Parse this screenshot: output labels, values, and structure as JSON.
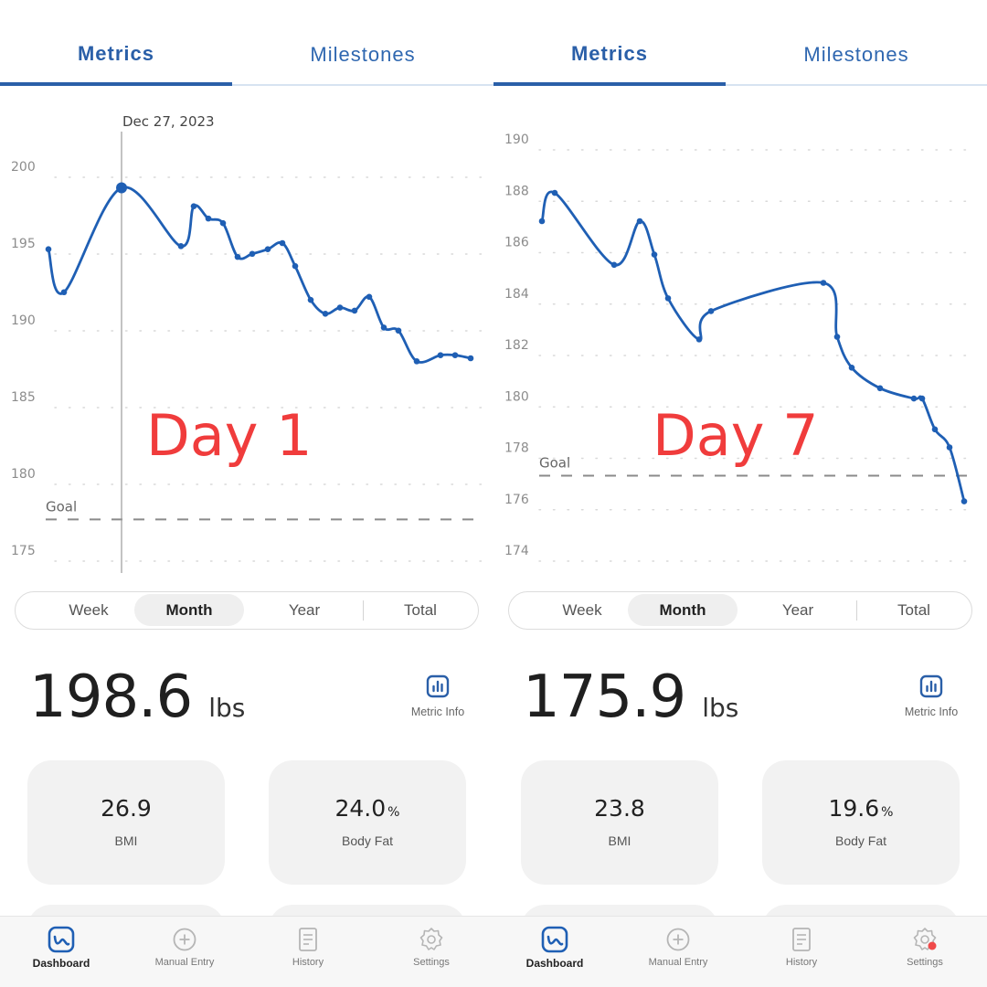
{
  "panels": [
    {
      "tabs": {
        "metrics": "Metrics",
        "milestones": "Milestones"
      },
      "chart_data": {
        "type": "line",
        "y_ticks": [
          "200",
          "195",
          "190",
          "185",
          "180",
          "175"
        ],
        "ylim": [
          175,
          200
        ],
        "goal_label": "Goal",
        "goal_value": 177,
        "selected_label": "Dec 27, 2023",
        "selected_value": 198.6,
        "values": [
          194.6,
          191.8,
          198.6,
          194.8,
          197.4,
          196.6,
          196.3,
          194.1,
          194.3,
          194.6,
          195.0,
          193.5,
          191.3,
          190.4,
          190.8,
          190.6,
          191.5,
          189.5,
          189.3,
          187.3,
          187.7,
          187.7,
          187.5
        ],
        "grid": true
      },
      "day_label": "Day 1",
      "periods": [
        "Week",
        "Month",
        "Year",
        "Total"
      ],
      "active_period": "Month",
      "weight": {
        "value": "198.6",
        "unit": "lbs"
      },
      "metric_info_label": "Metric Info",
      "cards": [
        {
          "value": "26.9",
          "unit": "",
          "label": "BMI"
        },
        {
          "value": "24.0",
          "unit": "%",
          "label": "Body Fat"
        }
      ],
      "nav": {
        "dashboard": "Dashboard",
        "manual_entry": "Manual Entry",
        "history": "History",
        "settings": "Settings"
      },
      "settings_badge": false
    },
    {
      "tabs": {
        "metrics": "Metrics",
        "milestones": "Milestones"
      },
      "chart_data": {
        "type": "line",
        "y_ticks": [
          "190",
          "188",
          "186",
          "184",
          "182",
          "180",
          "178",
          "176",
          "174"
        ],
        "ylim": [
          174,
          190
        ],
        "goal_label": "Goal",
        "goal_value": 176.9,
        "values": [
          186.8,
          187.9,
          185.1,
          186.8,
          185.5,
          183.8,
          182.2,
          183.3,
          184.4,
          182.3,
          181.1,
          180.3,
          179.9,
          179.9,
          178.7,
          178.0,
          175.9
        ],
        "grid": true
      },
      "day_label": "Day 7",
      "periods": [
        "Week",
        "Month",
        "Year",
        "Total"
      ],
      "active_period": "Month",
      "weight": {
        "value": "175.9",
        "unit": "lbs"
      },
      "metric_info_label": "Metric Info",
      "cards": [
        {
          "value": "23.8",
          "unit": "",
          "label": "BMI"
        },
        {
          "value": "19.6",
          "unit": "%",
          "label": "Body Fat"
        }
      ],
      "nav": {
        "dashboard": "Dashboard",
        "manual_entry": "Manual Entry",
        "history": "History",
        "settings": "Settings"
      },
      "settings_badge": true
    }
  ],
  "colors": {
    "accent": "#2a5fa8",
    "line": "#1f5fb4",
    "day_label": "#f03c3c",
    "badge": "#f04a4a"
  }
}
